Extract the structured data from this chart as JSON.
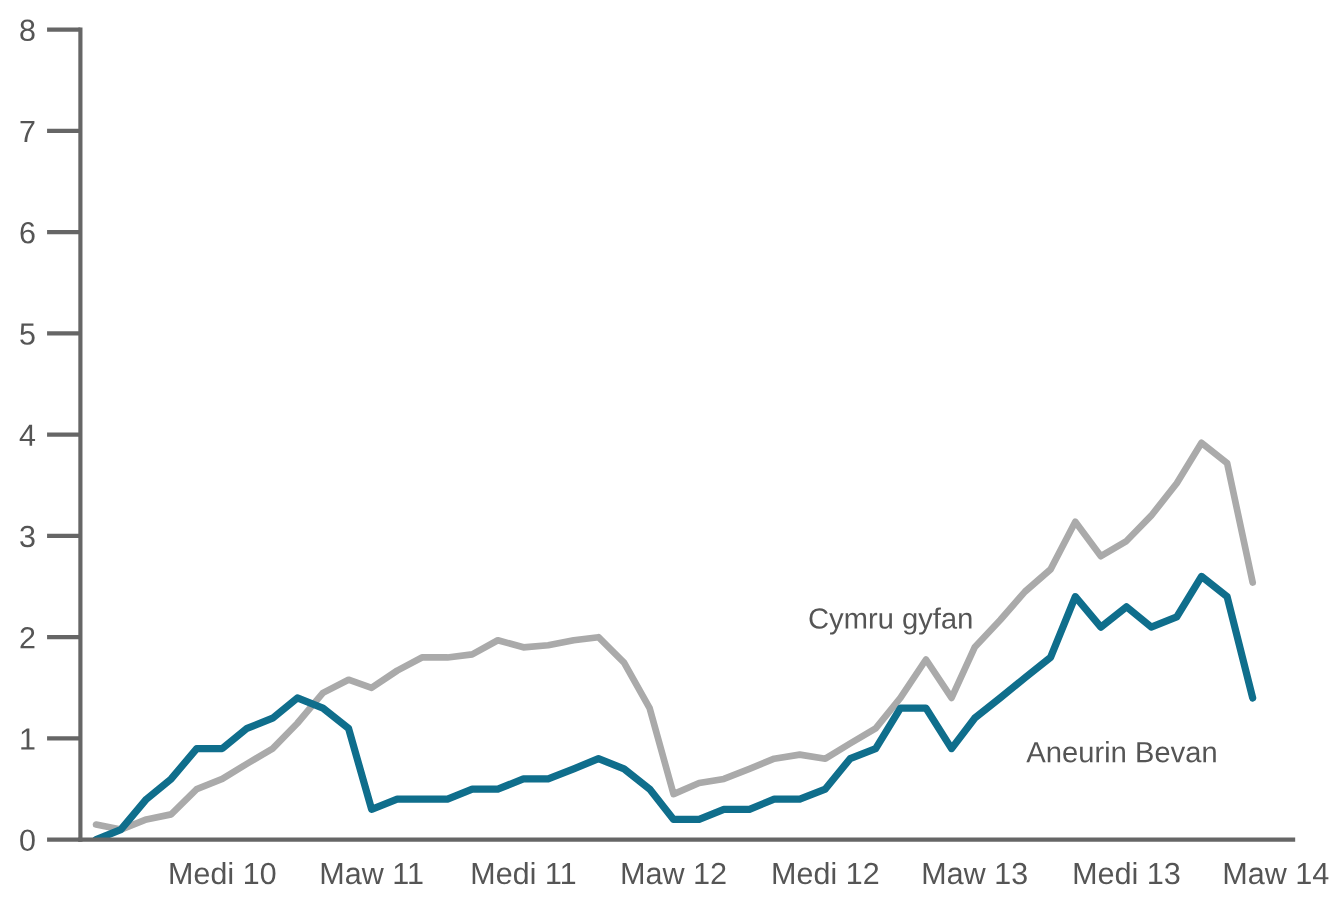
{
  "chart_data": {
    "type": "line",
    "x": [
      "2010-04",
      "2010-05",
      "2010-06",
      "2010-07",
      "2010-08",
      "2010-09",
      "2010-10",
      "2010-11",
      "2010-12",
      "2011-01",
      "2011-02",
      "2011-03",
      "2011-04",
      "2011-05",
      "2011-06",
      "2011-07",
      "2011-08",
      "2011-09",
      "2011-10",
      "2011-11",
      "2011-12",
      "2012-01",
      "2012-02",
      "2012-03",
      "2012-04",
      "2012-05",
      "2012-06",
      "2012-07",
      "2012-08",
      "2012-09",
      "2012-10",
      "2012-11",
      "2012-12",
      "2013-01",
      "2013-02",
      "2013-03",
      "2013-04",
      "2013-05",
      "2013-06",
      "2013-07",
      "2013-08",
      "2013-09",
      "2013-10",
      "2013-11",
      "2013-12",
      "2014-01",
      "2014-02"
    ],
    "series": [
      {
        "name": "Cymru gyfan",
        "color": "#aaaaaa",
        "values": [
          0.15,
          0.1,
          0.2,
          0.25,
          0.5,
          0.6,
          0.75,
          0.9,
          1.15,
          1.45,
          1.58,
          1.5,
          1.67,
          1.8,
          1.8,
          1.83,
          1.97,
          1.9,
          1.92,
          1.97,
          2.0,
          1.75,
          1.3,
          0.45,
          0.56,
          0.6,
          0.7,
          0.8,
          0.84,
          0.8,
          0.95,
          1.1,
          1.4,
          1.78,
          1.4,
          1.9,
          2.17,
          2.45,
          2.67,
          3.14,
          2.8,
          2.95,
          3.2,
          3.52,
          3.92,
          3.72,
          2.54
        ]
      },
      {
        "name": "Aneurin Bevan",
        "color": "#0f6e8c",
        "values": [
          0.0,
          0.1,
          0.4,
          0.6,
          0.9,
          0.9,
          1.1,
          1.2,
          1.4,
          1.3,
          1.1,
          0.3,
          0.4,
          0.4,
          0.4,
          0.5,
          0.5,
          0.6,
          0.6,
          0.7,
          0.8,
          0.7,
          0.5,
          0.2,
          0.2,
          0.3,
          0.3,
          0.4,
          0.4,
          0.5,
          0.8,
          0.9,
          1.3,
          1.3,
          0.9,
          1.2,
          1.4,
          1.6,
          1.8,
          2.4,
          2.1,
          2.3,
          2.1,
          2.2,
          2.6,
          2.4,
          1.4
        ]
      }
    ],
    "xlim": [
      "2010-03-13",
      "2014-03-22"
    ],
    "xticks": [
      {
        "value": "2010-09",
        "label": "Medi 10"
      },
      {
        "value": "2011-03",
        "label": "Maw 11"
      },
      {
        "value": "2011-09",
        "label": "Medi 11"
      },
      {
        "value": "2012-03",
        "label": "Maw 12"
      },
      {
        "value": "2012-09",
        "label": "Medi 12"
      },
      {
        "value": "2013-03",
        "label": "Maw 13"
      },
      {
        "value": "2013-09",
        "label": "Medi 13"
      },
      {
        "value": "2014-03",
        "label": "Maw 14"
      }
    ],
    "ylim": [
      0,
      8
    ],
    "yticks": [
      0,
      1,
      2,
      3,
      4,
      5,
      6,
      7,
      8
    ],
    "grid": false,
    "legend": false,
    "marker": "none",
    "line_style": "solid"
  }
}
